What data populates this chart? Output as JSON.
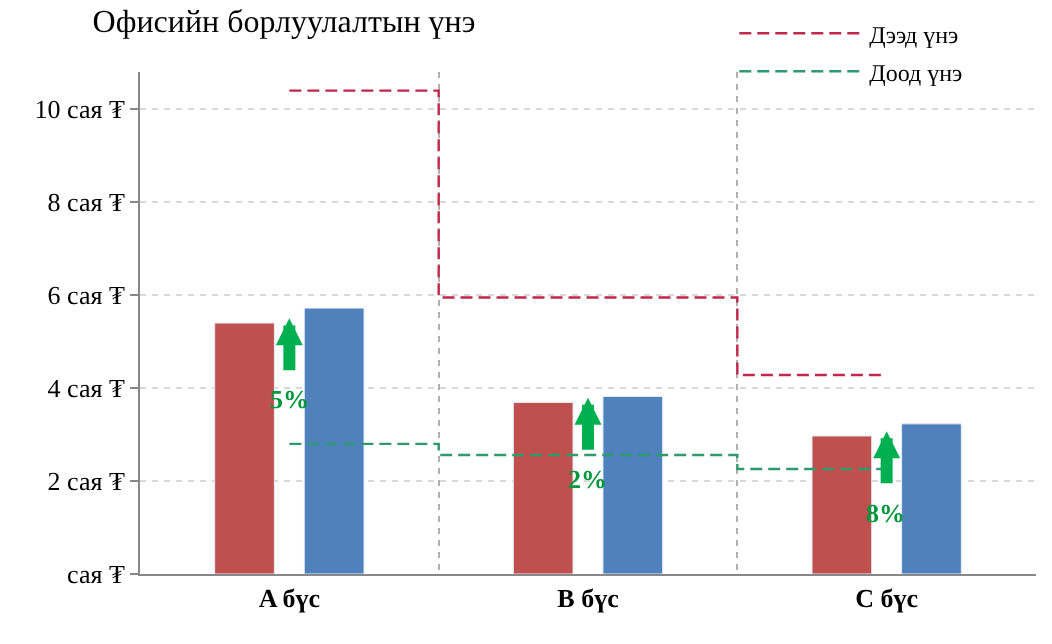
{
  "chart_data": {
    "type": "bar",
    "title": "Офисийн борлуулалтын үнэ",
    "categories": [
      "A бүс",
      "B бүс",
      "C бүс"
    ],
    "series": [
      {
        "color": "#c0504d",
        "values": [
          5.4,
          3.69,
          2.97
        ]
      },
      {
        "color": "#4f81bd",
        "values": [
          5.72,
          3.82,
          3.23
        ]
      },
      {
        "name": "Дээд үнэ",
        "type": "step",
        "color": "#c0284d",
        "line_style": "dashed",
        "values": [
          10.4,
          5.95,
          4.28
        ]
      },
      {
        "name": "Доод үнэ",
        "type": "step",
        "color": "#2e9a6e",
        "line_style": "dashed",
        "values": [
          2.8,
          2.56,
          2.26
        ]
      }
    ],
    "annotations": [
      "5%",
      "2%",
      "8%"
    ],
    "ylim": [
      0,
      10.8
    ],
    "yticks": [
      {
        "value": 0,
        "label": "сая ₮"
      },
      {
        "value": 2,
        "label": "2 сая ₮"
      },
      {
        "value": 4,
        "label": "4 сая ₮"
      },
      {
        "value": 6,
        "label": "6 сая ₮"
      },
      {
        "value": 8,
        "label": "8 сая ₮"
      },
      {
        "value": 10,
        "label": "10 сая ₮"
      }
    ],
    "grid": true,
    "legend": "top right"
  }
}
